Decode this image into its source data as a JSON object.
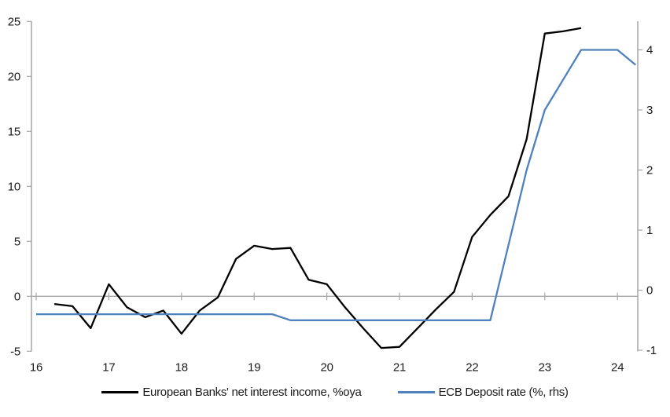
{
  "chart_data": {
    "type": "line",
    "title": "",
    "legend_position": "bottom-center",
    "grid": "zero-line-only",
    "colors": {
      "axis": "#a6a6a6",
      "labels": "#1a1a1a",
      "background": "#ffffff"
    },
    "x_axis": {
      "unit": "year",
      "ticks": [
        "16",
        "17",
        "18",
        "19",
        "20",
        "21",
        "22",
        "23",
        "24"
      ],
      "tick_years": [
        16,
        17,
        18,
        19,
        20,
        21,
        22,
        23,
        24
      ],
      "range": [
        15.95,
        24.32
      ]
    },
    "left_axis": {
      "ticks": [
        "25",
        "20",
        "15",
        "10",
        "5",
        "0",
        "-5"
      ],
      "values": [
        25,
        20,
        15,
        10,
        5,
        0,
        -5
      ],
      "range": [
        -5,
        25
      ]
    },
    "right_axis": {
      "ticks": [
        "4",
        "3",
        "2",
        "1",
        "0",
        "-1"
      ],
      "values": [
        4,
        3,
        2,
        1,
        0,
        -1
      ],
      "range": [
        -1.1,
        4.5
      ]
    },
    "series": [
      {
        "name": "European Banks' net interest income, %oya",
        "axis": "left",
        "color": "#000000",
        "x": [
          16.25,
          16.5,
          16.75,
          17,
          17.25,
          17.5,
          17.75,
          18,
          18.25,
          18.5,
          18.75,
          19,
          19.25,
          19.5,
          19.75,
          20,
          20.25,
          20.5,
          20.75,
          21,
          21.25,
          21.5,
          21.75,
          22,
          22.25,
          22.5,
          22.75,
          23,
          23.25,
          23.5
        ],
        "values": [
          -0.7,
          -0.9,
          -2.9,
          1.1,
          -1.0,
          -1.9,
          -1.3,
          -3.4,
          -1.3,
          -0.1,
          3.4,
          4.6,
          4.3,
          4.4,
          1.5,
          1.1,
          -1.0,
          -2.9,
          -4.7,
          -4.6,
          -2.9,
          -1.2,
          0.4,
          5.4,
          7.4,
          9.1,
          14.3,
          23.9,
          24.1,
          24.4
        ]
      },
      {
        "name": "ECB Deposit rate (%, rhs)",
        "axis": "right",
        "color": "#4f81bd",
        "x": [
          16,
          16.25,
          16.5,
          16.75,
          17,
          17.25,
          17.5,
          17.75,
          18,
          18.25,
          18.5,
          18.75,
          19,
          19.25,
          19.5,
          19.75,
          20,
          20.25,
          20.5,
          20.75,
          21,
          21.25,
          21.5,
          21.75,
          22,
          22.25,
          22.5,
          22.75,
          23,
          23.25,
          23.5,
          23.75,
          24,
          24.25
        ],
        "values": [
          -0.4,
          -0.4,
          -0.4,
          -0.4,
          -0.4,
          -0.4,
          -0.4,
          -0.4,
          -0.4,
          -0.4,
          -0.4,
          -0.4,
          -0.4,
          -0.4,
          -0.5,
          -0.5,
          -0.5,
          -0.5,
          -0.5,
          -0.5,
          -0.5,
          -0.5,
          -0.5,
          -0.5,
          -0.5,
          -0.5,
          0.75,
          2.0,
          3.0,
          3.5,
          4.0,
          4.0,
          4.0,
          3.75
        ]
      }
    ]
  }
}
